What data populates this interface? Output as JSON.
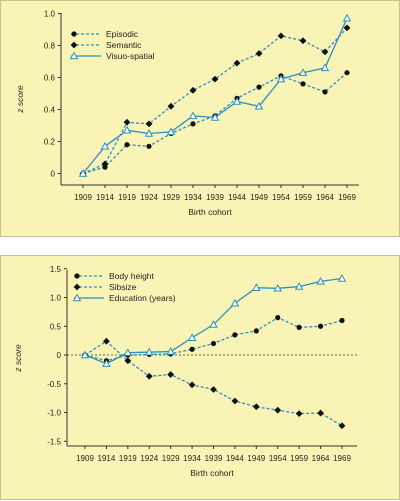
{
  "colors": {
    "panel_bg": "#f9f4b6",
    "series_line": "#2a8fc0",
    "marker_dark": "#111111",
    "axis": "#333333"
  },
  "chart_data": [
    {
      "type": "line",
      "title": "",
      "xlabel": "Birth cohort",
      "ylabel": "z score",
      "x": [
        1909,
        1914,
        1919,
        1924,
        1929,
        1934,
        1939,
        1944,
        1949,
        1954,
        1959,
        1964,
        1969
      ],
      "x_tick_labels": [
        "1909",
        "1914",
        "1919",
        "1924",
        "1929",
        "1934",
        "1939",
        "1944",
        "1949",
        "1954",
        "1959",
        "1964",
        "1969"
      ],
      "ylim": [
        -0.1,
        1.0
      ],
      "y_ticks": [
        0,
        0.2,
        0.4,
        0.6,
        0.8,
        1.0
      ],
      "y_tick_labels": [
        "0",
        "0.2",
        "0.4",
        "0.6",
        "0.8",
        "1.0"
      ],
      "grid": false,
      "legend_position": "top-left",
      "series": [
        {
          "name": "Episodic",
          "marker": "circle",
          "line_style": "dashed",
          "values": [
            0,
            0.04,
            0.18,
            0.17,
            0.25,
            0.31,
            0.36,
            0.47,
            0.54,
            0.61,
            0.56,
            0.51,
            0.63
          ]
        },
        {
          "name": "Semantic",
          "marker": "diamond",
          "line_style": "dashed",
          "values": [
            0,
            0.06,
            0.32,
            0.31,
            0.42,
            0.52,
            0.59,
            0.69,
            0.75,
            0.86,
            0.83,
            0.76,
            0.91
          ]
        },
        {
          "name": "Visuo-spatial",
          "marker": "triangle",
          "line_style": "solid",
          "values": [
            0,
            0.17,
            0.27,
            0.25,
            0.26,
            0.36,
            0.35,
            0.45,
            0.42,
            0.59,
            0.63,
            0.66,
            0.97
          ]
        }
      ]
    },
    {
      "type": "line",
      "title": "",
      "xlabel": "Birth cohort",
      "ylabel": "z score",
      "x": [
        1909,
        1914,
        1919,
        1924,
        1929,
        1934,
        1939,
        1944,
        1949,
        1954,
        1959,
        1964,
        1969
      ],
      "x_tick_labels": [
        "1909",
        "1914",
        "1919",
        "1924",
        "1929",
        "1934",
        "1939",
        "1944",
        "1949",
        "1954",
        "1959",
        "1964",
        "1969"
      ],
      "ylim": [
        -1.6,
        1.6
      ],
      "y_ticks": [
        -1.5,
        -1.0,
        -0.5,
        0,
        0.5,
        1.0,
        1.5
      ],
      "y_tick_labels": [
        "-1.5",
        "-1.0",
        "-0.5",
        "0",
        "0.5",
        "1.0",
        "1.5"
      ],
      "zero_reference_line": true,
      "grid": false,
      "legend_position": "top-left",
      "series": [
        {
          "name": "Body height",
          "marker": "circle",
          "line_style": "dashed",
          "values": [
            0,
            -0.1,
            0,
            0.01,
            0.02,
            0.1,
            0.2,
            0.35,
            0.42,
            0.65,
            0.48,
            0.5,
            0.6
          ]
        },
        {
          "name": "Sibsize",
          "marker": "diamond",
          "line_style": "dashed",
          "values": [
            0,
            0.24,
            -0.1,
            -0.37,
            -0.34,
            -0.52,
            -0.6,
            -0.8,
            -0.9,
            -0.96,
            -1.02,
            -1.01,
            -1.23
          ]
        },
        {
          "name": "Education (years)",
          "marker": "triangle",
          "line_style": "solid",
          "values": [
            0,
            -0.15,
            0.04,
            0.05,
            0.06,
            0.3,
            0.53,
            0.9,
            1.17,
            1.16,
            1.19,
            1.28,
            1.33
          ]
        }
      ]
    }
  ]
}
